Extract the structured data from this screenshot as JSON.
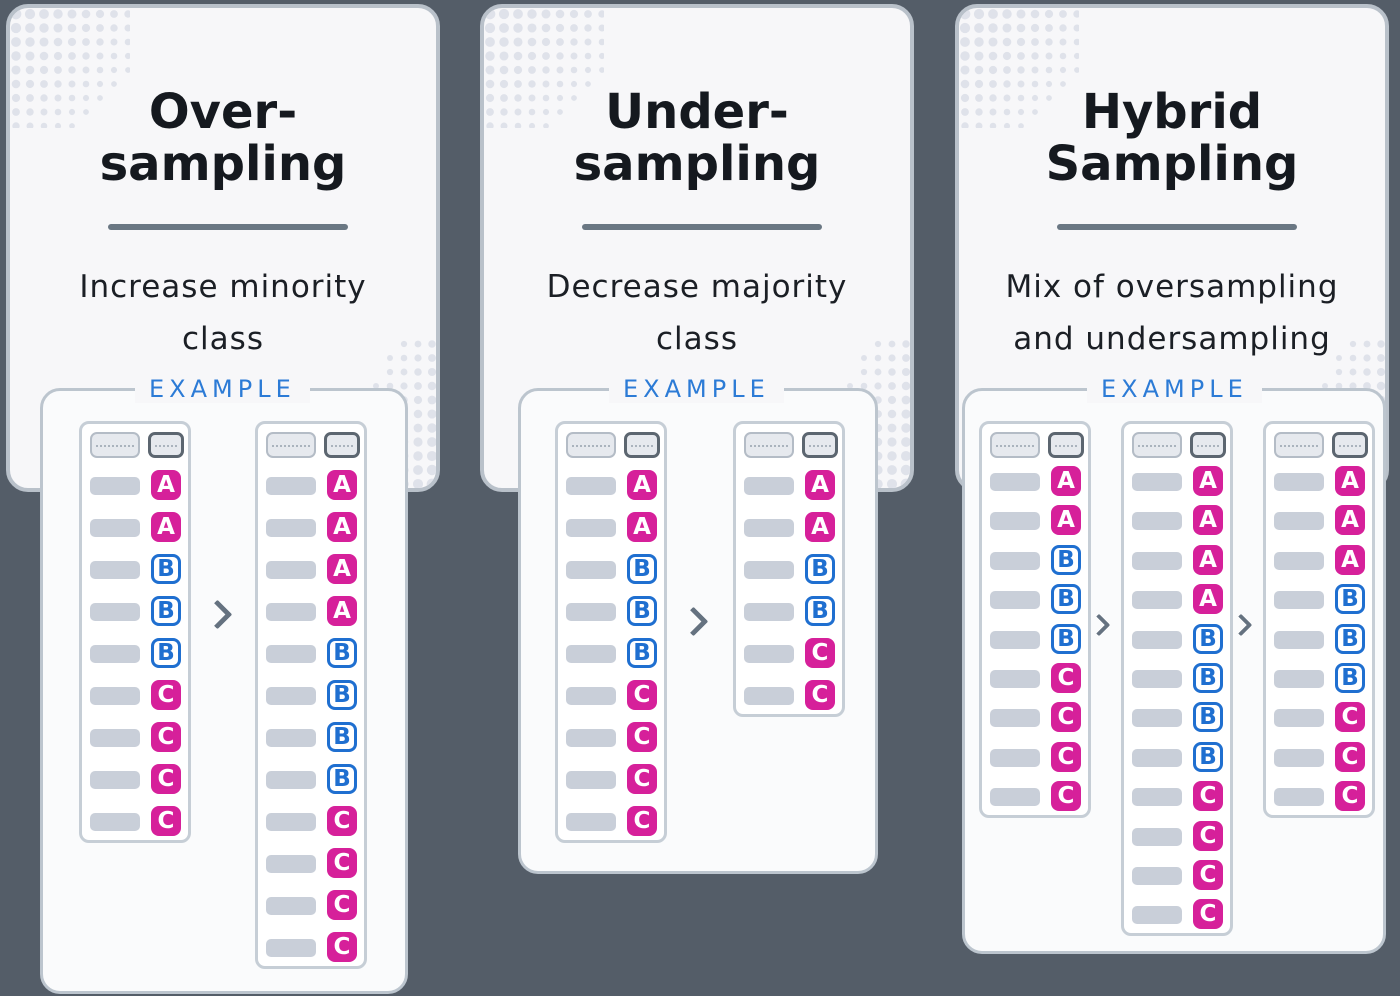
{
  "colors": {
    "background": "#545d68",
    "card": "#f7f7f9",
    "minority_badge": "#d6209a",
    "b_badge": "#1f6fd0",
    "example_label": "#2c7bd6"
  },
  "cards": [
    {
      "title": "Over-\nsampling",
      "description": "Increase minority\nclass",
      "example_label": "EXAMPLE",
      "tables": [
        [
          "A",
          "A",
          "B",
          "B",
          "B",
          "C",
          "C",
          "C",
          "C"
        ],
        [
          "A",
          "A",
          "A",
          "A",
          "B",
          "B",
          "B",
          "B",
          "C",
          "C",
          "C",
          "C"
        ]
      ]
    },
    {
      "title": "Under-\nsampling",
      "description": "Decrease majority\nclass",
      "example_label": "EXAMPLE",
      "tables": [
        [
          "A",
          "A",
          "B",
          "B",
          "B",
          "C",
          "C",
          "C",
          "C"
        ],
        [
          "A",
          "A",
          "B",
          "B",
          "C",
          "C"
        ]
      ]
    },
    {
      "title": "Hybrid\nSampling",
      "description": "Mix of oversampling\nand undersampling",
      "example_label": "EXAMPLE",
      "tables": [
        [
          "A",
          "A",
          "B",
          "B",
          "B",
          "C",
          "C",
          "C",
          "C"
        ],
        [
          "A",
          "A",
          "A",
          "A",
          "B",
          "B",
          "B",
          "B",
          "C",
          "C",
          "C",
          "C"
        ],
        [
          "A",
          "A",
          "A",
          "B",
          "B",
          "B",
          "C",
          "C",
          "C"
        ]
      ]
    }
  ]
}
